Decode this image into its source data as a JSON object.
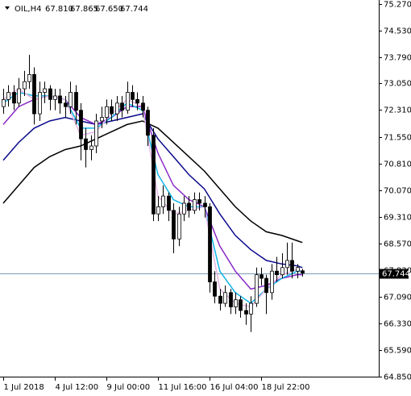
{
  "header": {
    "symbol": "OIL,H4",
    "values": [
      "67.810",
      "67.865",
      "67.650",
      "67.744"
    ]
  },
  "chart_data": {
    "type": "candlestick",
    "open": [
      72.4,
      72.6,
      72.8,
      72.5,
      72.9,
      73.1,
      73.3,
      72.2,
      72.8,
      72.9,
      72.6,
      72.7,
      72.5,
      72.4,
      72.8,
      72.3,
      71.5,
      71.2,
      71.3,
      72.0,
      72.1,
      72.4,
      72.2,
      72.5,
      72.3,
      72.8,
      72.6,
      72.5,
      72.3,
      71.6,
      69.4,
      69.6,
      69.9,
      69.5,
      68.7,
      69.4,
      69.7,
      69.5,
      69.8,
      69.7,
      69.6,
      67.5,
      67.1,
      66.9,
      67.2,
      66.8,
      67.0,
      66.7,
      66.6,
      66.9,
      67.7,
      67.6,
      67.2,
      67.8,
      67.7,
      67.9,
      68.1,
      67.8,
      67.81
    ],
    "high": [
      72.9,
      73.0,
      73.0,
      73.2,
      73.4,
      73.85,
      73.5,
      73.1,
      73.1,
      73.0,
      72.9,
      72.9,
      72.7,
      73.1,
      73.0,
      72.5,
      71.8,
      71.6,
      72.2,
      72.4,
      72.6,
      72.6,
      72.7,
      72.7,
      73.1,
      73.0,
      72.8,
      72.7,
      72.4,
      71.8,
      69.9,
      70.2,
      70.0,
      69.7,
      69.6,
      69.9,
      69.9,
      70.0,
      70.0,
      69.9,
      69.7,
      67.8,
      67.3,
      67.4,
      67.3,
      67.2,
      67.1,
      66.9,
      67.1,
      67.9,
      67.9,
      67.7,
      68.0,
      68.2,
      68.3,
      68.6,
      68.6,
      68.0,
      67.865
    ],
    "low": [
      72.2,
      72.4,
      72.3,
      72.4,
      72.7,
      72.9,
      71.9,
      72.0,
      72.5,
      72.3,
      72.3,
      72.2,
      72.1,
      72.2,
      71.9,
      70.9,
      70.7,
      70.9,
      71.1,
      71.8,
      71.9,
      72.0,
      72.0,
      72.1,
      72.2,
      72.4,
      72.3,
      72.1,
      71.3,
      69.2,
      69.2,
      69.4,
      69.2,
      68.3,
      68.5,
      69.2,
      69.3,
      69.4,
      69.5,
      69.3,
      67.2,
      66.9,
      66.7,
      66.8,
      66.6,
      66.6,
      66.5,
      66.3,
      66.1,
      66.8,
      67.4,
      66.6,
      67.0,
      67.5,
      67.6,
      67.7,
      67.6,
      67.6,
      67.65
    ],
    "close": [
      72.6,
      72.8,
      72.5,
      72.9,
      73.1,
      73.3,
      72.2,
      72.8,
      72.9,
      72.6,
      72.7,
      72.5,
      72.4,
      72.8,
      72.3,
      71.5,
      71.2,
      71.3,
      72.0,
      72.1,
      72.4,
      72.2,
      72.5,
      72.3,
      72.8,
      72.6,
      72.5,
      72.3,
      71.6,
      69.4,
      69.6,
      69.9,
      69.5,
      68.7,
      69.4,
      69.7,
      69.5,
      69.8,
      69.7,
      69.6,
      67.5,
      67.1,
      66.9,
      67.2,
      66.8,
      67.0,
      66.7,
      66.6,
      66.9,
      67.7,
      67.6,
      67.2,
      67.8,
      67.7,
      67.9,
      68.1,
      67.8,
      67.9,
      67.744
    ],
    "up_color": "#ffffff",
    "down_color": "#000000",
    "last_label": "67.744",
    "last_line_color": "#7a9cb8",
    "xlim": [
      -0.625,
      72.8125
    ],
    "ylim": [
      64.85,
      75.27
    ],
    "xticks": [
      {
        "value": 0,
        "label": "1 Jul 2018"
      },
      {
        "value": 10,
        "label": "4 Jul 12:00"
      },
      {
        "value": 20,
        "label": "9 Jul 00:00"
      },
      {
        "value": 30,
        "label": "11 Jul 16:00"
      },
      {
        "value": 40,
        "label": "16 Jul 04:00"
      },
      {
        "value": 50,
        "label": "18 Jul 22:00"
      }
    ],
    "yticks": [
      {
        "value": 75.27,
        "label": "75.270"
      },
      {
        "value": 74.53,
        "label": "74.530"
      },
      {
        "value": 73.79,
        "label": "73.790"
      },
      {
        "value": 73.05,
        "label": "73.050"
      },
      {
        "value": 72.31,
        "label": "72.310"
      },
      {
        "value": 71.55,
        "label": "71.550"
      },
      {
        "value": 70.81,
        "label": "70.810"
      },
      {
        "value": 70.07,
        "label": "70.070"
      },
      {
        "value": 69.31,
        "label": "69.310"
      },
      {
        "value": 68.57,
        "label": "68.570"
      },
      {
        "value": 67.83,
        "label": "67.830"
      },
      {
        "value": 67.09,
        "label": "67.090"
      },
      {
        "value": 66.33,
        "label": "66.330"
      },
      {
        "value": 65.59,
        "label": "65.590"
      },
      {
        "value": 64.85,
        "label": "64.850"
      }
    ],
    "line_series": [
      {
        "color": "#000000",
        "x": [
          0,
          3,
          6,
          9,
          12,
          15,
          18,
          21,
          24,
          27,
          30,
          33,
          36,
          39,
          42,
          45,
          48,
          51,
          54,
          57,
          58
        ],
        "values": [
          69.7,
          70.2,
          70.7,
          71.0,
          71.2,
          71.3,
          71.5,
          71.7,
          71.9,
          72.0,
          71.8,
          71.4,
          71.0,
          70.6,
          70.1,
          69.6,
          69.2,
          68.9,
          68.8,
          68.65,
          68.6
        ]
      },
      {
        "color": "#0a0a8c",
        "x": [
          0,
          3,
          6,
          9,
          12,
          15,
          18,
          21,
          24,
          27,
          30,
          33,
          36,
          39,
          42,
          45,
          48,
          51,
          54,
          57,
          58
        ],
        "values": [
          70.9,
          71.4,
          71.8,
          72.0,
          72.1,
          72.0,
          71.9,
          72.0,
          72.1,
          72.2,
          71.5,
          71.0,
          70.5,
          70.1,
          69.4,
          68.8,
          68.4,
          68.1,
          68.0,
          67.95,
          67.9
        ]
      },
      {
        "color": "#8a2bc8",
        "x": [
          0,
          3,
          6,
          9,
          12,
          15,
          18,
          21,
          24,
          27,
          30,
          33,
          36,
          39,
          42,
          45,
          48,
          51,
          54,
          57,
          58
        ],
        "values": [
          71.9,
          72.4,
          72.6,
          72.7,
          72.6,
          72.1,
          71.9,
          72.1,
          72.4,
          72.4,
          71.1,
          70.2,
          69.8,
          69.6,
          68.5,
          67.8,
          67.3,
          67.4,
          67.6,
          67.7,
          67.7
        ]
      },
      {
        "color": "#12b4e6",
        "x": [
          0,
          3,
          6,
          9,
          12,
          15,
          18,
          21,
          24,
          27,
          30,
          33,
          36,
          39,
          42,
          45,
          48,
          51,
          54,
          57,
          58
        ],
        "values": [
          72.5,
          72.8,
          72.7,
          72.7,
          72.6,
          71.8,
          71.8,
          72.1,
          72.5,
          72.3,
          70.5,
          69.8,
          69.6,
          69.6,
          67.8,
          67.2,
          66.9,
          67.3,
          67.6,
          67.8,
          67.8
        ]
      },
      {
        "color": "#e3b4e3",
        "x": [
          0,
          3,
          6,
          9,
          12,
          15,
          18,
          21,
          24,
          27,
          30,
          33,
          36,
          39,
          42,
          45,
          48,
          51,
          54,
          57,
          58
        ],
        "values": [
          72.6,
          72.9,
          72.6,
          72.7,
          72.6,
          71.6,
          71.7,
          72.2,
          72.6,
          72.4,
          69.9,
          69.4,
          69.5,
          69.6,
          67.3,
          66.9,
          66.8,
          67.3,
          67.7,
          67.85,
          67.8
        ]
      }
    ]
  }
}
